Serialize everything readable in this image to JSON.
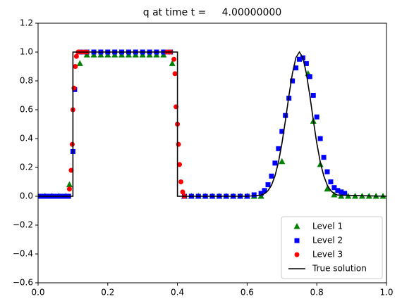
{
  "chart_data": {
    "type": "scatter",
    "title": "q at time t =     4.00000000",
    "xlim": [
      0,
      1
    ],
    "ylim": [
      -0.6,
      1.2
    ],
    "xticks": [
      {
        "value": 0,
        "label": "0.0"
      },
      0.2,
      0.4,
      0.6,
      0.8,
      {
        "value": 1,
        "label": "1.0"
      }
    ],
    "yticks": [
      {
        "value": -0.6,
        "label": "−0.6"
      },
      {
        "value": -0.4,
        "label": "−0.4"
      },
      {
        "value": -0.2,
        "label": "−0.2"
      },
      {
        "value": 0,
        "label": "0.0"
      },
      0.2,
      0.4,
      0.6,
      0.8,
      {
        "value": 1,
        "label": "1.0"
      },
      1.2
    ],
    "legend": "lower right",
    "series": [
      {
        "name": "Level 1",
        "type": "scatter",
        "marker": "triangle",
        "color": "#008000",
        "x": [
          0.0,
          0.02,
          0.04,
          0.06,
          0.08,
          0.09,
          0.12,
          0.14,
          0.16,
          0.18,
          0.2,
          0.22,
          0.24,
          0.26,
          0.28,
          0.3,
          0.32,
          0.34,
          0.36,
          0.385,
          0.42,
          0.44,
          0.46,
          0.48,
          0.5,
          0.52,
          0.54,
          0.56,
          0.58,
          0.6,
          0.62,
          0.64,
          0.7,
          0.775,
          0.79,
          0.81,
          0.83,
          0.85,
          0.87,
          0.89,
          0.91,
          0.93,
          0.95,
          0.97,
          0.99
        ],
        "values": [
          0,
          0,
          0,
          0,
          0,
          0.08,
          0.92,
          0.98,
          0.98,
          0.98,
          0.98,
          0.98,
          0.98,
          0.98,
          0.98,
          0.98,
          0.98,
          0.98,
          0.98,
          0.92,
          0,
          0,
          0,
          0,
          0,
          0,
          0,
          0,
          0,
          0,
          0,
          0,
          0.24,
          0.85,
          0.52,
          0.22,
          0.05,
          0.01,
          0,
          0,
          0,
          0,
          0,
          0,
          0
        ]
      },
      {
        "name": "Level 2",
        "type": "scatter",
        "marker": "square",
        "color": "#0000ff",
        "x": [
          0.0,
          0.0125,
          0.025,
          0.0375,
          0.05,
          0.0625,
          0.075,
          0.0875,
          0.1,
          0.105,
          0.12,
          0.14,
          0.16,
          0.18,
          0.2,
          0.22,
          0.24,
          0.26,
          0.28,
          0.3,
          0.32,
          0.34,
          0.36,
          0.38,
          0.42,
          0.44,
          0.46,
          0.48,
          0.5,
          0.52,
          0.54,
          0.56,
          0.58,
          0.6,
          0.62,
          0.64,
          0.65,
          0.66,
          0.67,
          0.68,
          0.69,
          0.7,
          0.71,
          0.72,
          0.73,
          0.74,
          0.75,
          0.76,
          0.77,
          0.78,
          0.79,
          0.8,
          0.81,
          0.82,
          0.83,
          0.84,
          0.85,
          0.86,
          0.87,
          0.88
        ],
        "values": [
          0,
          0,
          0,
          0,
          0,
          0,
          0,
          0,
          0.31,
          0.74,
          1,
          1,
          1,
          1,
          1,
          1,
          1,
          1,
          1,
          1,
          1,
          1,
          1,
          1,
          0,
          0,
          0,
          0,
          0,
          0,
          0,
          0,
          0,
          0,
          0.01,
          0.02,
          0.04,
          0.08,
          0.14,
          0.23,
          0.33,
          0.45,
          0.56,
          0.68,
          0.8,
          0.89,
          0.95,
          0.96,
          0.92,
          0.83,
          0.7,
          0.55,
          0.4,
          0.27,
          0.17,
          0.1,
          0.06,
          0.04,
          0.03,
          0.02
        ]
      },
      {
        "name": "Level 3",
        "type": "scatter",
        "marker": "circle",
        "color": "#ff0000",
        "x": [
          0.09,
          0.095,
          0.098,
          0.1,
          0.103,
          0.107,
          0.11,
          0.115,
          0.12,
          0.13,
          0.14,
          0.37,
          0.38,
          0.39,
          0.393,
          0.396,
          0.4,
          0.403,
          0.406,
          0.41,
          0.415,
          0.42
        ],
        "values": [
          0.05,
          0.18,
          0.36,
          0.6,
          0.75,
          0.9,
          0.97,
          1,
          1,
          1,
          1,
          1,
          1,
          0.95,
          0.85,
          0.62,
          0.5,
          0.36,
          0.22,
          0.1,
          0.03,
          0
        ]
      },
      {
        "name": "True solution",
        "type": "line",
        "color": "#000000",
        "x": [
          0.0,
          0.1,
          0.1,
          0.4,
          0.4,
          0.6,
          0.64,
          0.65,
          0.66,
          0.67,
          0.68,
          0.69,
          0.7,
          0.71,
          0.72,
          0.73,
          0.74,
          0.75,
          0.76,
          0.77,
          0.78,
          0.79,
          0.8,
          0.81,
          0.82,
          0.83,
          0.84,
          0.85,
          0.86,
          1.0
        ],
        "values": [
          0,
          0,
          1,
          1,
          0,
          0,
          0.008,
          0.018,
          0.039,
          0.077,
          0.141,
          0.237,
          0.368,
          0.527,
          0.698,
          0.852,
          0.961,
          1,
          0.961,
          0.852,
          0.698,
          0.527,
          0.368,
          0.237,
          0.141,
          0.077,
          0.039,
          0.018,
          0.008,
          0
        ]
      }
    ]
  }
}
